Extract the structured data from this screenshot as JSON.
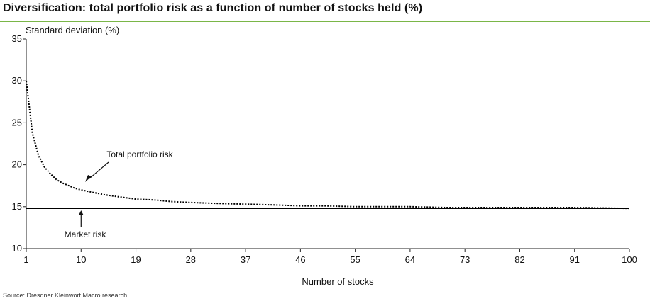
{
  "header": {
    "title": "Diversification: total portfolio risk as a function of number of stocks held (%)"
  },
  "footer": {
    "source": "Source: Dresdner Kleinwort Macro research"
  },
  "colors": {
    "accent_rule": "#7ab648",
    "line": "#000000"
  },
  "chart_data": {
    "type": "line",
    "title": "Diversification: total portfolio risk as a function of number of stocks held (%)",
    "ylabel": "Standard deviation (%)",
    "xlabel": "Number of stocks",
    "xlim": [
      1,
      100
    ],
    "ylim": [
      10,
      35
    ],
    "xticks": [
      "1",
      "10",
      "19",
      "28",
      "37",
      "46",
      "55",
      "64",
      "73",
      "82",
      "91",
      "100"
    ],
    "yticks": [
      "10",
      "15",
      "20",
      "25",
      "30",
      "35"
    ],
    "grid": false,
    "series": [
      {
        "name": "Total portfolio risk",
        "style": "dotted",
        "x": [
          1,
          2,
          3,
          4,
          5,
          6,
          7,
          8,
          9,
          10,
          12,
          14,
          16,
          19,
          22,
          25,
          28,
          32,
          37,
          42,
          46,
          50,
          55,
          60,
          64,
          70,
          73,
          80,
          82,
          90,
          91,
          100
        ],
        "y": [
          30.0,
          23.8,
          21.1,
          19.7,
          18.9,
          18.2,
          17.8,
          17.5,
          17.2,
          17.0,
          16.7,
          16.4,
          16.2,
          15.9,
          15.8,
          15.6,
          15.5,
          15.4,
          15.3,
          15.2,
          15.1,
          15.1,
          15.0,
          15.0,
          15.0,
          14.9,
          14.9,
          14.9,
          14.9,
          14.9,
          14.9,
          14.8
        ]
      },
      {
        "name": "Market risk",
        "style": "solid",
        "x": [
          1,
          100
        ],
        "y": [
          14.8,
          14.8
        ]
      }
    ],
    "annotations": [
      {
        "text": "Total portfolio risk",
        "x": 10,
        "y": 17.0
      },
      {
        "text": "Market risk",
        "x": 10,
        "y": 14.8
      }
    ]
  }
}
